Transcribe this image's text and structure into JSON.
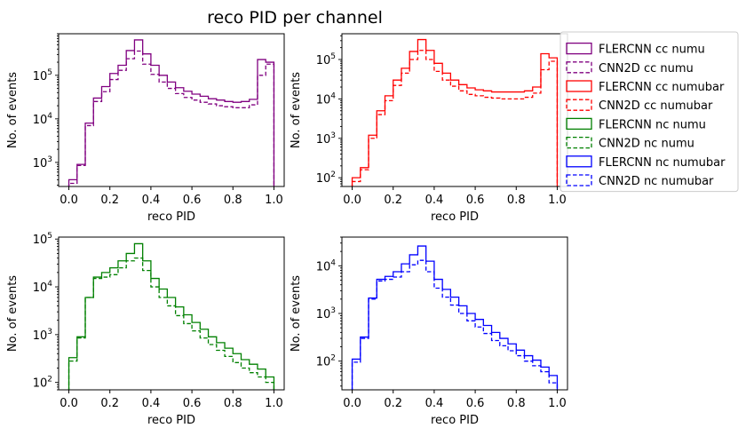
{
  "figure": {
    "title": "reco PID per channel"
  },
  "legend": {
    "entries": [
      {
        "label": "FLERCNN cc numu",
        "color": "#800080",
        "style": "solid"
      },
      {
        "label": "CNN2D cc numu",
        "color": "#800080",
        "style": "dashed"
      },
      {
        "label": "FLERCNN cc numubar",
        "color": "#ff0000",
        "style": "solid"
      },
      {
        "label": "CNN2D cc numubar",
        "color": "#ff0000",
        "style": "dashed"
      },
      {
        "label": "FLERCNN nc numu",
        "color": "#008000",
        "style": "solid"
      },
      {
        "label": "CNN2D nc numu",
        "color": "#008000",
        "style": "dashed"
      },
      {
        "label": "FLERCNN nc numubar",
        "color": "#0000ff",
        "style": "solid"
      },
      {
        "label": "CNN2D nc numubar",
        "color": "#0000ff",
        "style": "dashed"
      }
    ]
  },
  "chart_data": [
    {
      "type": "histogram-step",
      "color": "#800080",
      "xlabel": "reco PID",
      "ylabel": "No. of events",
      "yscale": "log",
      "xlim": [
        -0.05,
        1.05
      ],
      "ylim": [
        280,
        900000
      ],
      "xticks": [
        "0.0",
        "0.2",
        "0.4",
        "0.6",
        "0.8",
        "1.0"
      ],
      "yticks": [
        "10^3",
        "10^4",
        "10^5"
      ],
      "bin_edges": [
        0,
        0.04,
        0.08,
        0.12,
        0.16,
        0.2,
        0.24,
        0.28,
        0.32,
        0.36,
        0.4,
        0.44,
        0.48,
        0.52,
        0.56,
        0.6,
        0.64,
        0.68,
        0.72,
        0.76,
        0.8,
        0.84,
        0.88,
        0.92,
        0.96,
        1.0
      ],
      "series": [
        {
          "name": "FLERCNN cc numu",
          "style": "solid",
          "values": [
            400,
            900,
            8000,
            30000,
            55000,
            110000,
            170000,
            370000,
            650000,
            310000,
            170000,
            100000,
            70000,
            52000,
            43000,
            37000,
            33000,
            29000,
            27000,
            25000,
            24000,
            25000,
            28000,
            230000,
            200000
          ]
        },
        {
          "name": "CNN2D cc numu",
          "style": "dashed",
          "values": [
            330,
            850,
            7000,
            25000,
            42000,
            80000,
            130000,
            240000,
            360000,
            180000,
            105000,
            70000,
            50000,
            38000,
            31000,
            27000,
            24000,
            22000,
            20000,
            19000,
            18000,
            18000,
            21000,
            100000,
            180000
          ]
        }
      ]
    },
    {
      "type": "histogram-step",
      "color": "#ff0000",
      "xlabel": "reco PID",
      "ylabel": "No. of events",
      "yscale": "log",
      "xlim": [
        -0.05,
        1.05
      ],
      "ylim": [
        60,
        450000
      ],
      "xticks": [
        "0.0",
        "0.2",
        "0.4",
        "0.6",
        "0.8",
        "1.0"
      ],
      "yticks": [
        "10^2",
        "10^3",
        "10^4",
        "10^5"
      ],
      "bin_edges": [
        0,
        0.04,
        0.08,
        0.12,
        0.16,
        0.2,
        0.24,
        0.28,
        0.32,
        0.36,
        0.4,
        0.44,
        0.48,
        0.52,
        0.56,
        0.6,
        0.64,
        0.68,
        0.72,
        0.76,
        0.8,
        0.84,
        0.88,
        0.92,
        0.96,
        1.0
      ],
      "series": [
        {
          "name": "FLERCNN cc numubar",
          "style": "solid",
          "values": [
            100,
            180,
            1200,
            5000,
            12000,
            30000,
            60000,
            160000,
            320000,
            170000,
            80000,
            45000,
            30000,
            23000,
            19000,
            17000,
            16000,
            15000,
            15000,
            15000,
            15000,
            16000,
            20000,
            140000,
            110000
          ]
        },
        {
          "name": "CNN2D cc numubar",
          "style": "dashed",
          "values": [
            80,
            160,
            1000,
            4000,
            9000,
            22000,
            45000,
            100000,
            170000,
            100000,
            50000,
            30000,
            21000,
            16000,
            13000,
            12000,
            11000,
            10500,
            10000,
            10000,
            10000,
            11000,
            14000,
            55000,
            90000
          ]
        }
      ]
    },
    {
      "type": "histogram-step",
      "color": "#008000",
      "xlabel": "reco PID",
      "ylabel": "No. of events",
      "yscale": "log",
      "xlim": [
        -0.05,
        1.05
      ],
      "ylim": [
        70,
        110000
      ],
      "xticks": [
        "0.0",
        "0.2",
        "0.4",
        "0.6",
        "0.8",
        "1.0"
      ],
      "yticks": [
        "10^2",
        "10^3",
        "10^4",
        "10^5"
      ],
      "bin_edges": [
        0,
        0.04,
        0.08,
        0.12,
        0.16,
        0.2,
        0.24,
        0.28,
        0.32,
        0.36,
        0.4,
        0.44,
        0.48,
        0.52,
        0.56,
        0.6,
        0.64,
        0.68,
        0.72,
        0.76,
        0.8,
        0.84,
        0.88,
        0.92,
        0.96,
        1.0
      ],
      "series": [
        {
          "name": "FLERCNN nc numu",
          "style": "solid",
          "values": [
            330,
            900,
            6000,
            16000,
            20000,
            25000,
            35000,
            50000,
            80000,
            35000,
            15000,
            9000,
            6000,
            3800,
            2600,
            1800,
            1300,
            900,
            680,
            520,
            400,
            300,
            240,
            190,
            130
          ]
        },
        {
          "name": "CNN2D nc numu",
          "style": "dashed",
          "values": [
            280,
            850,
            6000,
            15000,
            16000,
            18000,
            25000,
            35000,
            40000,
            22000,
            10000,
            6000,
            4000,
            2500,
            1700,
            1200,
            850,
            620,
            470,
            350,
            260,
            200,
            160,
            130,
            100
          ]
        }
      ]
    },
    {
      "type": "histogram-step",
      "color": "#0000ff",
      "xlabel": "reco PID",
      "ylabel": "No. of events",
      "yscale": "log",
      "xlim": [
        -0.05,
        1.05
      ],
      "ylim": [
        25,
        40000
      ],
      "xticks": [
        "0.0",
        "0.2",
        "0.4",
        "0.6",
        "0.8",
        "1.0"
      ],
      "yticks": [
        "10^2",
        "10^3",
        "10^4"
      ],
      "bin_edges": [
        0,
        0.04,
        0.08,
        0.12,
        0.16,
        0.2,
        0.24,
        0.28,
        0.32,
        0.36,
        0.4,
        0.44,
        0.48,
        0.52,
        0.56,
        0.6,
        0.64,
        0.68,
        0.72,
        0.76,
        0.8,
        0.84,
        0.88,
        0.92,
        0.96,
        1.0
      ],
      "series": [
        {
          "name": "FLERCNN nc numubar",
          "style": "solid",
          "values": [
            110,
            320,
            2100,
            5200,
            6000,
            7500,
            11000,
            17000,
            26000,
            12500,
            5200,
            3200,
            2200,
            1450,
            1000,
            750,
            560,
            400,
            300,
            230,
            170,
            130,
            105,
            75,
            50
          ]
        },
        {
          "name": "CNN2D nc numubar",
          "style": "dashed",
          "values": [
            95,
            300,
            2000,
            4800,
            5200,
            5800,
            7500,
            10500,
            13000,
            7500,
            3400,
            2200,
            1500,
            1000,
            700,
            520,
            380,
            270,
            210,
            165,
            130,
            100,
            80,
            60,
            35
          ]
        }
      ]
    }
  ]
}
